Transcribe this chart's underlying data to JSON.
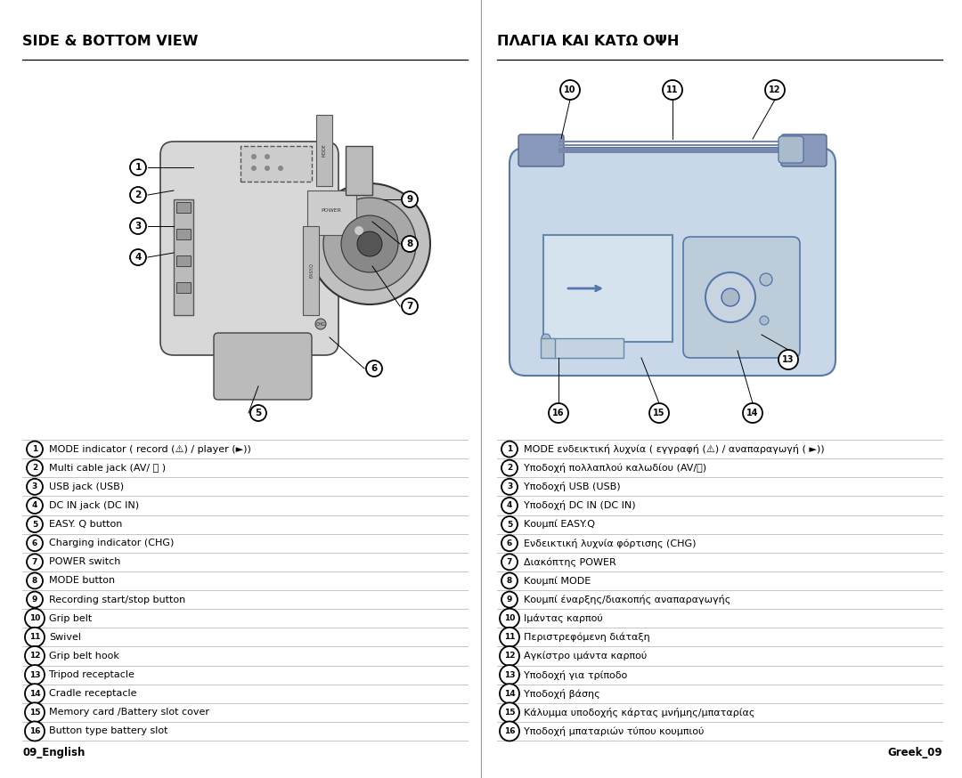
{
  "title_left": "SIDE & BOTTOM VIEW",
  "title_right": "ΠΛΑΓΙΑ ΚΑΙ ΚΑΤΩ ΟΨΗ",
  "bg_color": "#ffffff",
  "text_color": "#000000",
  "items_left": [
    {
      "num": "1",
      "text": "MODE indicator ( record (⚠) / player (►))"
    },
    {
      "num": "2",
      "text": "Multi cable jack (AV/ Ⓢ )"
    },
    {
      "num": "3",
      "text": "USB jack (USB)"
    },
    {
      "num": "4",
      "text": "DC IN jack (DC IN)"
    },
    {
      "num": "5",
      "text": "EASY. Q button"
    },
    {
      "num": "6",
      "text": "Charging indicator (CHG)"
    },
    {
      "num": "7",
      "text": "POWER switch"
    },
    {
      "num": "8",
      "text": "MODE button"
    },
    {
      "num": "9",
      "text": "Recording start/stop button"
    },
    {
      "num": "10",
      "text": "Grip belt"
    },
    {
      "num": "11",
      "text": "Swivel"
    },
    {
      "num": "12",
      "text": "Grip belt hook"
    },
    {
      "num": "13",
      "text": "Tripod receptacle"
    },
    {
      "num": "14",
      "text": "Cradle receptacle"
    },
    {
      "num": "15",
      "text": "Memory card /Battery slot cover"
    },
    {
      "num": "16",
      "text": "Button type battery slot"
    }
  ],
  "items_right": [
    {
      "num": "1",
      "text": "MODE ενδεικτική λυχνία ( εγγραφή (⚠) / αναπαραγωγή ( ►))"
    },
    {
      "num": "2",
      "text": "Υποδοχή πολλαπλού καλωδίου (AV/Ⓢ)"
    },
    {
      "num": "3",
      "text": "Υποδοχή USB (USB)"
    },
    {
      "num": "4",
      "text": "Υποδοχή DC IN (DC IN)"
    },
    {
      "num": "5",
      "text": "Κουμπί EASY.Q"
    },
    {
      "num": "6",
      "text": "Ενδεικτική λυχνία φόρτισης (CHG)"
    },
    {
      "num": "7",
      "text": "Διακόπτης POWER"
    },
    {
      "num": "8",
      "text": "Κουμπί MODE"
    },
    {
      "num": "9",
      "text": "Κουμπί έναρξης/διακοπής αναπαραγωγής"
    },
    {
      "num": "10",
      "text": "Ιμάντας καρπού"
    },
    {
      "num": "11",
      "text": "Περιστρεφόμενη διάταξη"
    },
    {
      "num": "12",
      "text": "Αγκίστρο ιμάντα καρπού"
    },
    {
      "num": "13",
      "text": "Υποδοχή για τρίποδο"
    },
    {
      "num": "14",
      "text": "Υποδοχή βάσης"
    },
    {
      "num": "15",
      "text": "Κάλυμμα υποδοχής κάρτας μνήμης/μπαταρίας"
    },
    {
      "num": "16",
      "text": "Υποδοχή μπαταριών τύπου κουμπιού"
    }
  ],
  "footer_left": "09_English",
  "footer_right": "Greek_09"
}
